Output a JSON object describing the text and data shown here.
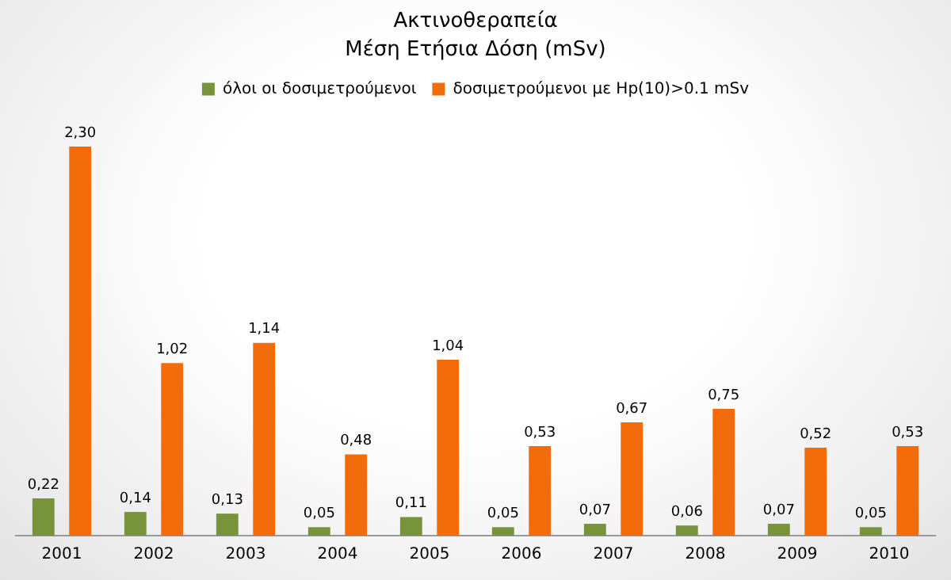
{
  "chart_data": {
    "type": "bar",
    "title": "Ακτινοθεραπεία",
    "subtitle": "Μέση Ετήσια Δόση (mSv)",
    "categories": [
      "2001",
      "2002",
      "2003",
      "2004",
      "2005",
      "2006",
      "2007",
      "2008",
      "2009",
      "2010"
    ],
    "series": [
      {
        "name": "όλοι οι δοσιμετρούμενοι",
        "color": "#77933c",
        "values": [
          0.22,
          0.14,
          0.13,
          0.05,
          0.11,
          0.05,
          0.07,
          0.06,
          0.07,
          0.05
        ],
        "value_labels": [
          "0,22",
          "0,14",
          "0,13",
          "0,05",
          "0,11",
          "0,05",
          "0,07",
          "0,06",
          "0,07",
          "0,05"
        ]
      },
      {
        "name": "δοσιμετρούμενοι με Hp(10)>0.1 mSv",
        "color": "#f36c0c",
        "values": [
          2.3,
          1.02,
          1.14,
          0.48,
          1.04,
          0.53,
          0.67,
          0.75,
          0.52,
          0.53
        ],
        "value_labels": [
          "2,30",
          "1,02",
          "1,14",
          "0,48",
          "1,04",
          "0,53",
          "0,67",
          "0,75",
          "0,52",
          "0,53"
        ]
      }
    ],
    "legend": "top",
    "grid": false
  }
}
